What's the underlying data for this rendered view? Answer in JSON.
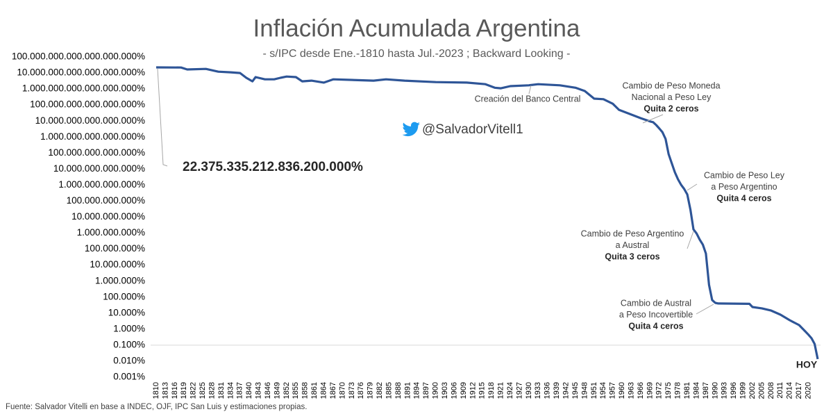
{
  "chart_data": {
    "type": "line",
    "title": "Inflación Acumulada Argentina",
    "subtitle": "- s/IPC desde Ene.-1810 hasta Jul.-2023 ; Backward Looking -",
    "source": "Fuente: Salvador Vitelli en base a INDEC, OJF, IPC San Luis y estimaciones propias.",
    "handle": "@SalvadorVitell1",
    "log_scale": true,
    "color": "#2e5597",
    "baseline": 0.1,
    "x": [
      1810,
      1818,
      1820,
      1826,
      1830,
      1834,
      1837,
      1839,
      1841,
      1842,
      1845,
      1848,
      1850,
      1852,
      1855,
      1857,
      1860,
      1864,
      1867,
      1880,
      1884,
      1890,
      1900,
      1910,
      1916,
      1919,
      1921,
      1924,
      1930,
      1933,
      1940,
      1945,
      1948,
      1951,
      1954,
      1957,
      1959,
      1962,
      1966,
      1969,
      1970,
      1971,
      1972,
      1973,
      1974,
      1975,
      1976,
      1977,
      1978,
      1979,
      1980,
      1981,
      1982,
      1983,
      1984,
      1985,
      1986,
      1987,
      1988,
      1989,
      1990,
      1991,
      2001,
      2002,
      2005,
      2008,
      2011,
      2014,
      2017,
      2019,
      2020,
      2021,
      2022,
      2023
    ],
    "values": [
      2.2375e+16,
      2.2e+16,
      1.65e+16,
      1.8e+16,
      1.2e+16,
      1.1e+16,
      1e+16,
      5000000000000000.0,
      3000000000000000.0,
      5500000000000000.0,
      4000000000000000.0,
      4000000000000000.0,
      5000000000000000.0,
      6000000000000000.0,
      5500000000000000.0,
      3000000000000000.0,
      3300000000000000.0,
      2500000000000000.0,
      4000000000000000.0,
      3300000000000000.0,
      4000000000000000.0,
      3300000000000000.0,
      2700000000000000.0,
      2500000000000000.0,
      2000000000000000.0,
      1200000000000000.0,
      1100000000000000.0,
      1500000000000000.0,
      1700000000000000.0,
      2000000000000000.0,
      1700000000000000.0,
      1200000000000000.0,
      750000000000000.0,
      250000000000000.0,
      230000000000000.0,
      120000000000000.0,
      50000000000000.0,
      30000000000000.0,
      15000000000000.0,
      9400000000000.0,
      8400000000000.0,
      5600000000000.0,
      3400000000000.0,
      2000000000000.0,
      760000000000.0,
      85000000000.0,
      23000000000.0,
      6300000000.0,
      2300000000.0,
      1050000000.0,
      570000000.0,
      260000000.0,
      29000000.0,
      1700000.0,
      950000.0,
      390000.0,
      190000.0,
      53000.0,
      590,
      66,
      44,
      40,
      38,
      24,
      20,
      14.5,
      8,
      3.6,
      1.8,
      0.72,
      0.45,
      0.27,
      0.12,
      0.0135
    ],
    "xlim": [
      1810,
      2023
    ],
    "xticks": [
      1810,
      1813,
      1816,
      1819,
      1822,
      1825,
      1828,
      1831,
      1834,
      1837,
      1840,
      1843,
      1846,
      1849,
      1852,
      1855,
      1858,
      1861,
      1864,
      1867,
      1870,
      1873,
      1876,
      1879,
      1882,
      1885,
      1888,
      1891,
      1894,
      1897,
      1900,
      1903,
      1906,
      1909,
      1912,
      1915,
      1918,
      1921,
      1924,
      1927,
      1930,
      1933,
      1936,
      1939,
      1942,
      1945,
      1948,
      1951,
      1954,
      1957,
      1960,
      1963,
      1966,
      1969,
      1972,
      1975,
      1978,
      1981,
      1984,
      1987,
      1990,
      1993,
      1996,
      1999,
      2002,
      2005,
      2008,
      2011,
      2014,
      2017,
      2020
    ],
    "ylim": [
      0.001,
      1e+17
    ],
    "yticks": [
      {
        "value": 0.001,
        "label": "0.001%"
      },
      {
        "value": 0.01,
        "label": "0.010%"
      },
      {
        "value": 0.1,
        "label": "0.100%"
      },
      {
        "value": 1,
        "label": "1.000%"
      },
      {
        "value": 10,
        "label": "10.000%"
      },
      {
        "value": 100,
        "label": "100.000%"
      },
      {
        "value": 1000,
        "label": "1.000.000%"
      },
      {
        "value": 10000,
        "label": "10.000.000%"
      },
      {
        "value": 100000,
        "label": "100.000.000%"
      },
      {
        "value": 1000000,
        "label": "1.000.000.000%"
      },
      {
        "value": 10000000,
        "label": "10.000.000.000%"
      },
      {
        "value": 100000000,
        "label": "100.000.000.000%"
      },
      {
        "value": 1000000000,
        "label": "1.000.000.000.000%"
      },
      {
        "value": 10000000000,
        "label": "10.000.000.000.000%"
      },
      {
        "value": 100000000000,
        "label": "100.000.000.000.000%"
      },
      {
        "value": 1000000000000,
        "label": "1.000.000.000.000.000%"
      },
      {
        "value": 10000000000000,
        "label": "10.000.000.000.000.000%"
      },
      {
        "value": 100000000000000,
        "label": "100.000.000.000.000.000%"
      },
      {
        "value": 1000000000000000,
        "label": "1.000.000.000.000.000.000%"
      },
      {
        "value": 10000000000000000,
        "label": "10.000.000.000.000.000.000%"
      },
      {
        "value": 100000000000000000,
        "label": "100.000.000.000.000.000.000%"
      }
    ],
    "annotations": [
      {
        "lines": [
          "Creación del Banco Central"
        ]
      },
      {
        "lines": [
          "Cambio de Peso Moneda",
          "Nacional a Peso Ley"
        ],
        "bold": "Quita 2 ceros"
      },
      {
        "lines": [
          "Cambio de Peso Ley",
          "a Peso Argentino"
        ],
        "bold": "Quita 4 ceros"
      },
      {
        "lines": [
          "Cambio de Peso Argentino",
          "a Austral"
        ],
        "bold": "Quita 3 ceros"
      },
      {
        "lines": [
          "Cambio de Austral",
          "a Peso Incovertible"
        ],
        "bold": "Quita 4 ceros"
      }
    ],
    "start_label": "22.375.335.212.836.200.000%",
    "end_label": "HOY"
  }
}
